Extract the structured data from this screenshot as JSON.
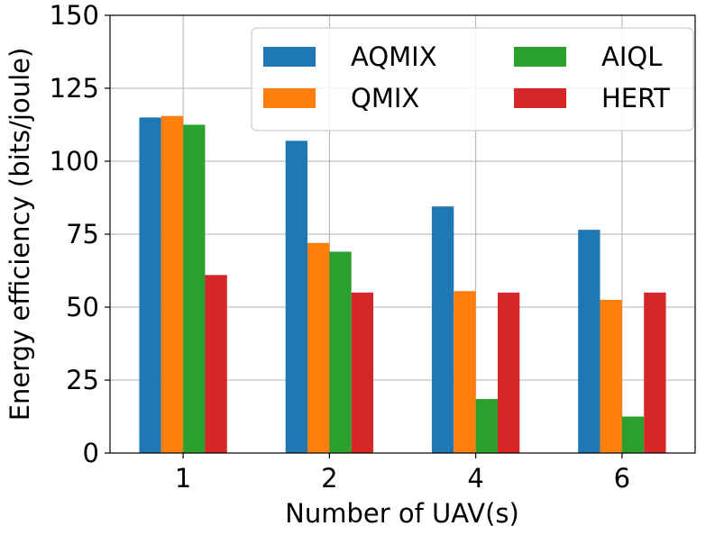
{
  "chart_data": {
    "type": "bar",
    "categories": [
      "1",
      "2",
      "4",
      "6"
    ],
    "series": [
      {
        "name": "AQMIX",
        "color": "#1f77b4",
        "values": [
          115,
          107,
          84.5,
          76.5
        ]
      },
      {
        "name": "QMIX",
        "color": "#ff7f0e",
        "values": [
          115.5,
          72,
          55.5,
          52.5
        ]
      },
      {
        "name": "AIQL",
        "color": "#2ca02c",
        "values": [
          112.5,
          69,
          18.5,
          12.5
        ]
      },
      {
        "name": "HERT",
        "color": "#d62728",
        "values": [
          61,
          55,
          55,
          55
        ]
      }
    ],
    "title": "",
    "xlabel": "Number of UAV(s)",
    "ylabel": "Energy efficiency (bits/joule)",
    "ylim": [
      0,
      150
    ],
    "yticks": [
      "0",
      "25",
      "50",
      "75",
      "100",
      "125",
      "150"
    ],
    "grid": true,
    "legend_position": "top-right",
    "legend_columns": 2
  }
}
